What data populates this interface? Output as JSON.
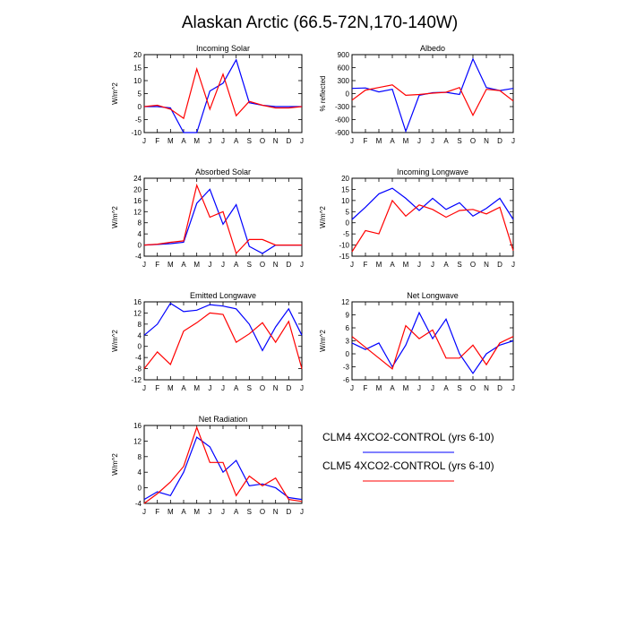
{
  "title": "Alaskan Arctic (66.5-72N,170-140W)",
  "colors": {
    "series_a": "#0000ff",
    "series_b": "#ff0000"
  },
  "legend": [
    {
      "label": "CLM4 4XCO2-CONTROL (yrs 6-10)",
      "color": "#0000ff"
    },
    {
      "label": "CLM5 4XCO2-CONTROL (yrs 6-10)",
      "color": "#ff0000"
    }
  ],
  "chart_data": [
    {
      "type": "line",
      "title": "Incoming Solar",
      "ylabel": "W/m^2",
      "x": [
        "J",
        "F",
        "M",
        "A",
        "M",
        "J",
        "J",
        "A",
        "S",
        "O",
        "N",
        "D",
        "J"
      ],
      "ylim": [
        -10,
        20
      ],
      "yticks": [
        -10,
        -5,
        0,
        5,
        10,
        15,
        20
      ],
      "series": [
        {
          "values": [
            0,
            0,
            -0.5,
            -10,
            -10,
            6,
            9,
            18,
            1.5,
            0.5,
            0,
            0,
            0
          ],
          "color": "#0000ff"
        },
        {
          "values": [
            0,
            0.5,
            -1,
            -4.5,
            14.5,
            -1,
            12.5,
            -3.5,
            2,
            0.5,
            -0.5,
            -0.5,
            0
          ],
          "color": "#ff0000"
        }
      ]
    },
    {
      "type": "line",
      "title": "Albedo",
      "ylabel": "% reflected",
      "x": [
        "J",
        "F",
        "M",
        "A",
        "M",
        "J",
        "J",
        "A",
        "S",
        "O",
        "N",
        "D",
        "J"
      ],
      "ylim": [
        -900,
        900
      ],
      "yticks": [
        -900,
        -600,
        -300,
        0,
        300,
        600,
        900
      ],
      "series": [
        {
          "values": [
            120,
            130,
            40,
            100,
            -870,
            -40,
            20,
            30,
            -20,
            800,
            140,
            70,
            120
          ],
          "color": "#0000ff"
        },
        {
          "values": [
            -150,
            80,
            140,
            200,
            -40,
            -20,
            10,
            30,
            140,
            -500,
            100,
            70,
            -170
          ],
          "color": "#ff0000"
        }
      ]
    },
    {
      "type": "line",
      "title": "Absorbed Solar",
      "ylabel": "W/m^2",
      "x": [
        "J",
        "F",
        "M",
        "A",
        "M",
        "J",
        "J",
        "A",
        "S",
        "O",
        "N",
        "D",
        "J"
      ],
      "ylim": [
        -4,
        24
      ],
      "yticks": [
        -4,
        0,
        4,
        8,
        12,
        16,
        20,
        24
      ],
      "series": [
        {
          "values": [
            0,
            0.2,
            0.5,
            1,
            15,
            20,
            7.5,
            14.5,
            -0.5,
            -3,
            0,
            0,
            0
          ],
          "color": "#0000ff"
        },
        {
          "values": [
            0,
            0.3,
            1,
            1.5,
            21.5,
            10,
            12,
            -3,
            2,
            2,
            0,
            0,
            0
          ],
          "color": "#ff0000"
        }
      ]
    },
    {
      "type": "line",
      "title": "Incoming Longwave",
      "ylabel": "W/m^2",
      "x": [
        "J",
        "F",
        "M",
        "A",
        "M",
        "J",
        "J",
        "A",
        "S",
        "O",
        "N",
        "D",
        "J"
      ],
      "ylim": [
        -15,
        20
      ],
      "yticks": [
        -15,
        -10,
        -5,
        0,
        5,
        10,
        15,
        20
      ],
      "series": [
        {
          "values": [
            1.5,
            7,
            13,
            15.5,
            11,
            5.5,
            11,
            6,
            9,
            3,
            6.5,
            11,
            1.5
          ],
          "color": "#0000ff"
        },
        {
          "values": [
            -13,
            -3.5,
            -5,
            10,
            3,
            8,
            6,
            2.5,
            5.5,
            6,
            4,
            7,
            -12.5
          ],
          "color": "#ff0000"
        }
      ]
    },
    {
      "type": "line",
      "title": "Emitted Longwave",
      "ylabel": "W/m^2",
      "x": [
        "J",
        "F",
        "M",
        "A",
        "M",
        "J",
        "J",
        "A",
        "S",
        "O",
        "N",
        "D",
        "J"
      ],
      "ylim": [
        -12,
        16
      ],
      "yticks": [
        -12,
        -8,
        -4,
        0,
        4,
        8,
        12,
        16
      ],
      "series": [
        {
          "values": [
            4,
            8,
            15.5,
            12.5,
            13,
            15,
            14.5,
            13.5,
            8,
            -1.5,
            7,
            13.5,
            4
          ],
          "color": "#0000ff"
        },
        {
          "values": [
            -8,
            -2,
            -6.5,
            5.5,
            8.5,
            12,
            11.5,
            1.5,
            4.5,
            8.5,
            1.5,
            9,
            -8
          ],
          "color": "#ff0000"
        }
      ]
    },
    {
      "type": "line",
      "title": "Net Longwave",
      "ylabel": "W/m^2",
      "x": [
        "J",
        "F",
        "M",
        "A",
        "M",
        "J",
        "J",
        "A",
        "S",
        "O",
        "N",
        "D",
        "J"
      ],
      "ylim": [
        -6,
        12
      ],
      "yticks": [
        -6,
        -3,
        0,
        3,
        6,
        9,
        12
      ],
      "series": [
        {
          "values": [
            2.5,
            1,
            2.5,
            -3,
            2,
            9.5,
            3.5,
            8,
            0,
            -4.5,
            0,
            2,
            3
          ],
          "color": "#0000ff"
        },
        {
          "values": [
            4,
            1.5,
            -1,
            -3.5,
            6.5,
            3.5,
            5.5,
            -1,
            -1,
            2,
            -2.5,
            2.5,
            4
          ],
          "color": "#ff0000"
        }
      ]
    },
    {
      "type": "line",
      "title": "Net Radiation",
      "ylabel": "W/m^2",
      "x": [
        "J",
        "F",
        "M",
        "A",
        "M",
        "J",
        "J",
        "A",
        "S",
        "O",
        "N",
        "D",
        "J"
      ],
      "ylim": [
        -4,
        16
      ],
      "yticks": [
        -4,
        0,
        4,
        8,
        12,
        16
      ],
      "series": [
        {
          "values": [
            -3,
            -1,
            -2,
            4,
            13,
            10.5,
            4,
            7,
            0.5,
            1,
            0,
            -2.5,
            -3
          ],
          "color": "#0000ff"
        },
        {
          "values": [
            -4,
            -1.5,
            1.5,
            5.5,
            15.5,
            6.5,
            6.5,
            -2,
            3,
            0.5,
            2.5,
            -3,
            -3.5
          ],
          "color": "#ff0000"
        }
      ]
    }
  ]
}
